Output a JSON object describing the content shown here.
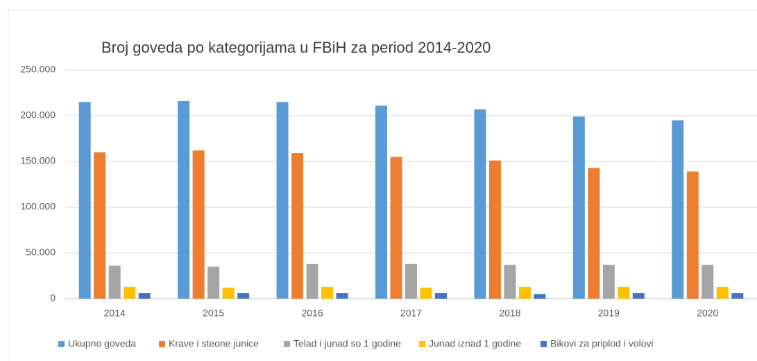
{
  "chart_data": {
    "type": "bar",
    "title": "Broj goveda po kategorijama u FBiH za period 2014-2020",
    "categories": [
      "2014",
      "2015",
      "2016",
      "2017",
      "2018",
      "2019",
      "2020"
    ],
    "series": [
      {
        "name": "Ukupno goveda",
        "color": "#5b9bd5",
        "values": [
          215000,
          216000,
          215000,
          211000,
          207000,
          199000,
          195000
        ]
      },
      {
        "name": "Krave i steone junice",
        "color": "#ed7d31",
        "values": [
          160000,
          162000,
          159000,
          155000,
          151000,
          143000,
          139000
        ]
      },
      {
        "name": "Telad i junad so 1 godine",
        "color": "#a5a5a5",
        "values": [
          36000,
          35000,
          38000,
          38000,
          37000,
          37000,
          37000
        ]
      },
      {
        "name": "Junad iznad 1 godine",
        "color": "#ffc000",
        "values": [
          13000,
          12000,
          13000,
          12000,
          13000,
          13000,
          13000
        ]
      },
      {
        "name": "Bikovi za priplod i volovi",
        "color": "#4472c4",
        "values": [
          6000,
          6000,
          6000,
          6000,
          5000,
          6000,
          6000
        ]
      }
    ],
    "ylim": [
      0,
      250000
    ],
    "yticks": [
      0,
      {
        "value": 50000,
        "label": "50.000"
      },
      {
        "value": 100000,
        "label": "100.000"
      },
      {
        "value": 150000,
        "label": "150.000"
      },
      {
        "value": 200000,
        "label": "200.000"
      },
      {
        "value": 250000,
        "label": "250.000"
      }
    ],
    "grid": true,
    "legend": "bottom"
  }
}
